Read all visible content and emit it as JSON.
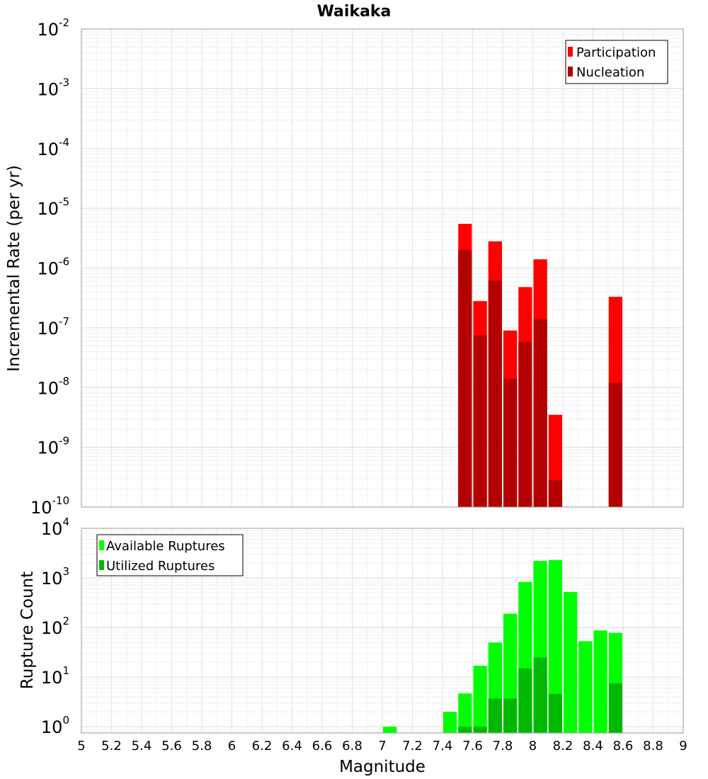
{
  "chart_data": [
    {
      "type": "bar",
      "title": "Waikaka",
      "xlabel": "",
      "ylabel": "Incremental Rate (per yr)",
      "yscale": "log",
      "ylim": [
        1e-10,
        0.01
      ],
      "xlim": [
        5,
        9
      ],
      "bin_width": 0.1,
      "y_ticks": [
        {
          "base": "10",
          "exp": "-10",
          "value": 1e-10
        },
        {
          "base": "10",
          "exp": "-9",
          "value": 1e-09
        },
        {
          "base": "10",
          "exp": "-8",
          "value": 1e-08
        },
        {
          "base": "10",
          "exp": "-7",
          "value": 1e-07
        },
        {
          "base": "10",
          "exp": "-6",
          "value": 1e-06
        },
        {
          "base": "10",
          "exp": "-5",
          "value": 1e-05
        },
        {
          "base": "10",
          "exp": "-4",
          "value": 0.0001
        },
        {
          "base": "10",
          "exp": "-3",
          "value": 0.001
        },
        {
          "base": "10",
          "exp": "-2",
          "value": 0.01
        }
      ],
      "legend_position": "top-right",
      "series": [
        {
          "name": "Participation",
          "color": "#ff0000",
          "x": [
            7.55,
            7.65,
            7.75,
            7.85,
            7.95,
            8.05,
            8.15,
            8.55
          ],
          "values": [
            5.5e-06,
            2.8e-07,
            2.8e-06,
            9e-08,
            4.8e-07,
            1.4e-06,
            3.5e-09,
            3.3e-07
          ]
        },
        {
          "name": "Nucleation",
          "color": "#b30000",
          "x": [
            7.55,
            7.65,
            7.75,
            7.85,
            7.95,
            8.05,
            8.15,
            8.55
          ],
          "values": [
            2e-06,
            7.5e-08,
            6.2e-07,
            1.4e-08,
            5.8e-08,
            1.4e-07,
            2.8e-10,
            1.2e-08
          ]
        }
      ]
    },
    {
      "type": "bar",
      "title": "",
      "xlabel": "Magnitude",
      "ylabel": "Rupture Count",
      "yscale": "log",
      "ylim": [
        0.75,
        10000
      ],
      "xlim": [
        5,
        9
      ],
      "bin_width": 0.1,
      "x_ticks": [
        "5",
        "5.2",
        "5.4",
        "5.6",
        "5.8",
        "6",
        "6.2",
        "6.4",
        "6.6",
        "6.8",
        "7",
        "7.2",
        "7.4",
        "7.6",
        "7.8",
        "8",
        "8.2",
        "8.4",
        "8.6",
        "8.8",
        "9"
      ],
      "y_ticks": [
        {
          "base": "10",
          "exp": "0",
          "value": 1
        },
        {
          "base": "10",
          "exp": "1",
          "value": 10
        },
        {
          "base": "10",
          "exp": "2",
          "value": 100
        },
        {
          "base": "10",
          "exp": "3",
          "value": 1000
        },
        {
          "base": "10",
          "exp": "4",
          "value": 10000
        }
      ],
      "legend_position": "top-left",
      "series": [
        {
          "name": "Available Ruptures",
          "color": "#00ff00",
          "x": [
            7.05,
            7.45,
            7.55,
            7.65,
            7.75,
            7.85,
            7.95,
            8.05,
            8.15,
            8.25,
            8.35,
            8.45,
            8.55
          ],
          "values": [
            1,
            2,
            4.7,
            17,
            50,
            190,
            830,
            2200,
            2300,
            520,
            53,
            87,
            78
          ]
        },
        {
          "name": "Utilized Ruptures",
          "color": "#00b800",
          "x": [
            7.55,
            7.65,
            7.75,
            7.85,
            7.95,
            8.05,
            8.15,
            8.55
          ],
          "values": [
            1,
            1,
            3.7,
            3.7,
            15,
            25,
            4.6,
            7.5
          ]
        }
      ]
    }
  ]
}
